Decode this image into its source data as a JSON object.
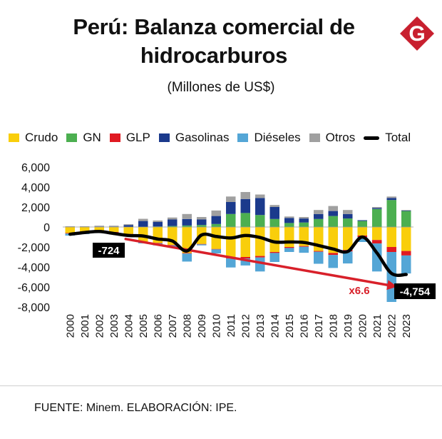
{
  "header": {
    "title_line1": "Perú: Balanza comercial de",
    "title_line2": "hidrocarburos",
    "subtitle": "(Millones de US$)",
    "logo_letter": "G"
  },
  "colors": {
    "Crudo": "#F9CE0B",
    "GN": "#4CAF50",
    "GLP": "#E01A22",
    "Gasolinas": "#1B3A8C",
    "Dieseles": "#54A6D6",
    "Otros": "#A0A0A0",
    "Total": "#000000",
    "trend": "#D8202A",
    "logo": "#C8202F"
  },
  "legend": [
    {
      "key": "Crudo",
      "label": "Crudo",
      "type": "box"
    },
    {
      "key": "GN",
      "label": "GN",
      "type": "box"
    },
    {
      "key": "GLP",
      "label": "GLP",
      "type": "box"
    },
    {
      "key": "Gasolinas",
      "label": "Gasolinas",
      "type": "box"
    },
    {
      "key": "Dieseles",
      "label": "Diéseles",
      "type": "box"
    },
    {
      "key": "Otros",
      "label": "Otros",
      "type": "box"
    },
    {
      "key": "Total",
      "label": "Total",
      "type": "line"
    }
  ],
  "chart_data": {
    "type": "bar",
    "stacked": true,
    "title": "Perú: Balanza comercial de hidrocarburos",
    "subtitle": "(Millones de US$)",
    "categories": [
      "2000",
      "2001",
      "2002",
      "2003",
      "2004",
      "2005",
      "2006",
      "2007",
      "2008",
      "2009",
      "2010",
      "2011",
      "2012",
      "2013",
      "2014",
      "2015",
      "2016",
      "2017",
      "2018",
      "2019",
      "2020",
      "2021",
      "2022",
      "2023"
    ],
    "ylim": [
      -8000,
      6000
    ],
    "yticks": [
      6000,
      4000,
      2000,
      0,
      -2000,
      -4000,
      -6000,
      -8000
    ],
    "ytick_labels": [
      "6,000",
      "4,000",
      "2,000",
      "0",
      "-2,000",
      "-4,000",
      "-6,000",
      "-8,000"
    ],
    "series": [
      {
        "name": "Crudo",
        "values": [
          -600,
          -450,
          -350,
          -500,
          -700,
          -1500,
          -1600,
          -1800,
          -2600,
          -1700,
          -2200,
          -3100,
          -3000,
          -2900,
          -2500,
          -2000,
          -1900,
          -2400,
          -2600,
          -2300,
          -850,
          -1300,
          -2000,
          -2400
        ]
      },
      {
        "name": "GN",
        "values": [
          0,
          0,
          0,
          0,
          0,
          0,
          50,
          100,
          150,
          200,
          300,
          1300,
          1400,
          1200,
          800,
          400,
          450,
          800,
          1100,
          850,
          600,
          1800,
          2700,
          1600
        ]
      },
      {
        "name": "GLP",
        "values": [
          -60,
          -60,
          -60,
          -60,
          -60,
          -40,
          -40,
          -50,
          -60,
          -40,
          -40,
          -50,
          -150,
          -150,
          -100,
          -100,
          -80,
          -80,
          -200,
          -150,
          -150,
          -350,
          -500,
          -450
        ]
      },
      {
        "name": "Gasolinas",
        "values": [
          0,
          0,
          50,
          50,
          200,
          600,
          450,
          650,
          650,
          550,
          800,
          1200,
          1400,
          1700,
          1200,
          500,
          400,
          500,
          500,
          450,
          80,
          100,
          200,
          50
        ]
      },
      {
        "name": "Diéseles",
        "values": [
          -200,
          -200,
          -200,
          -150,
          -200,
          -100,
          -200,
          -200,
          -800,
          -100,
          -400,
          -900,
          -700,
          -1400,
          -900,
          -400,
          -600,
          -1200,
          -1300,
          -1200,
          -500,
          -2800,
          -5000,
          -1800
        ]
      },
      {
        "name": "Otros",
        "values": [
          80,
          80,
          80,
          80,
          80,
          220,
          150,
          200,
          500,
          250,
          550,
          550,
          700,
          350,
          200,
          150,
          150,
          400,
          500,
          400,
          0,
          100,
          150,
          50
        ]
      }
    ],
    "total": {
      "name": "Total",
      "values": [
        -724,
        -550,
        -450,
        -650,
        -850,
        -900,
        -1200,
        -1400,
        -2400,
        -800,
        -950,
        -1100,
        -850,
        -1050,
        -1500,
        -1500,
        -1550,
        -1850,
        -2200,
        -2450,
        -1000,
        -2600,
        -4650,
        -4754
      ]
    },
    "trend": {
      "from_year": "2004",
      "from_value": -1200,
      "to_year": "2022",
      "to_value": -5900
    },
    "annotations": {
      "start": "-724",
      "end": "-4,754",
      "multiplier": "x6.6"
    }
  },
  "footer": {
    "source": "FUENTE: Minem. ELABORACIÓN: IPE."
  }
}
